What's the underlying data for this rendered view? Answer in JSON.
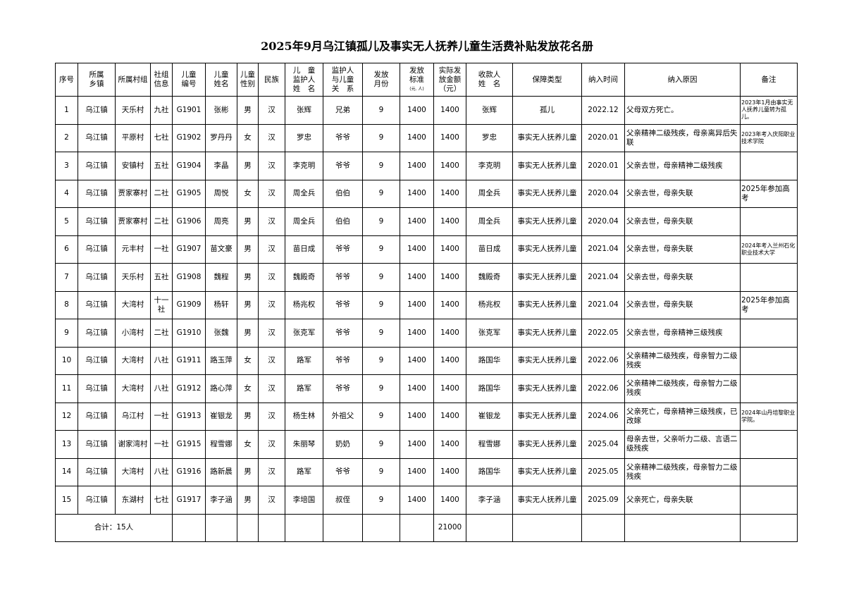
{
  "title": "2025年9月乌江镇孤儿及事实无人抚养儿童生活费补贴发放花名册",
  "headers": [
    "序号",
    "所属\n乡镇",
    "所属村组",
    "社组\n信息",
    "儿童\n编号",
    "儿童\n姓名",
    "儿童\n性别",
    "民族",
    "儿　童\n监护人\n姓　名",
    "监护人\n与儿童\n关　系",
    "发放\n月份",
    "发放\n标准",
    "实际发\n放金额\n（元）",
    "收款人\n姓　名",
    "保障类型",
    "纳入时间",
    "纳入原因",
    "备注"
  ],
  "standard_unit": "(元. 人)",
  "rows": [
    [
      "1",
      "乌江镇",
      "天乐村",
      "九社",
      "G1901",
      "张彬",
      "男",
      "汉",
      "张辉",
      "兄弟",
      "9",
      "1400",
      "1400",
      "张辉",
      "孤儿",
      "2022.12",
      "父母双方死亡。",
      "2023年1月由事实无人抚养儿童转为孤儿。"
    ],
    [
      "2",
      "乌江镇",
      "平原村",
      "七社",
      "G1902",
      "罗丹丹",
      "女",
      "汉",
      "罗忠",
      "爷爷",
      "9",
      "1400",
      "1400",
      "罗忠",
      "事实无人抚养儿童",
      "2020.01",
      "父亲精神二级残疾，母亲离异后失联",
      "2023年考入庆阳职业技术学院"
    ],
    [
      "3",
      "乌江镇",
      "安镇村",
      "五社",
      "G1904",
      "李晶",
      "男",
      "汉",
      "李克明",
      "爷爷",
      "9",
      "1400",
      "1400",
      "李克明",
      "事实无人抚养儿童",
      "2020.01",
      "父亲去世，母亲精神二级残疾",
      ""
    ],
    [
      "4",
      "乌江镇",
      "贾家寨村",
      "二社",
      "G1905",
      "周悦",
      "女",
      "汉",
      "周全兵",
      "伯伯",
      "9",
      "1400",
      "1400",
      "周全兵",
      "事实无人抚养儿童",
      "2020.04",
      "父亲去世，母亲失联",
      "2025年参加高考"
    ],
    [
      "5",
      "乌江镇",
      "贾家寨村",
      "二社",
      "G1906",
      "周亮",
      "男",
      "汉",
      "周全兵",
      "伯伯",
      "9",
      "1400",
      "1400",
      "周全兵",
      "事实无人抚养儿童",
      "2020.04",
      "父亲去世，母亲失联",
      ""
    ],
    [
      "6",
      "乌江镇",
      "元丰村",
      "一社",
      "G1907",
      "苗文豪",
      "男",
      "汉",
      "苗日成",
      "爷爷",
      "9",
      "1400",
      "1400",
      "苗日成",
      "事实无人抚养儿童",
      "2021.04",
      "父亲去世，母亲失联",
      "2024年考入兰州石化职业技术大学"
    ],
    [
      "7",
      "乌江镇",
      "天乐村",
      "五社",
      "G1908",
      "魏程",
      "男",
      "汉",
      "魏殿奇",
      "爷爷",
      "9",
      "1400",
      "1400",
      "魏殿奇",
      "事实无人抚养儿童",
      "2021.04",
      "父亲去世，母亲失联",
      ""
    ],
    [
      "8",
      "乌江镇",
      "大湾村",
      "十一社",
      "G1909",
      "杨轩",
      "男",
      "汉",
      "杨兆权",
      "爷爷",
      "9",
      "1400",
      "1400",
      "杨兆权",
      "事实无人抚养儿童",
      "2021.04",
      "父亲去世，母亲失联",
      "2025年参加高考"
    ],
    [
      "9",
      "乌江镇",
      "小湾村",
      "二社",
      "G1910",
      "张魏",
      "男",
      "汉",
      "张克军",
      "爷爷",
      "9",
      "1400",
      "1400",
      "张克军",
      "事实无人抚养儿童",
      "2022.05",
      "父亲去世，母亲精神三级残疾",
      ""
    ],
    [
      "10",
      "乌江镇",
      "大湾村",
      "八社",
      "G1911",
      "路玉萍",
      "女",
      "汉",
      "路军",
      "爷爷",
      "9",
      "1400",
      "1400",
      "路国华",
      "事实无人抚养儿童",
      "2022.06",
      "父亲精神二级残疾，母亲智力二级残疾",
      ""
    ],
    [
      "11",
      "乌江镇",
      "大湾村",
      "八社",
      "G1912",
      "路心萍",
      "女",
      "汉",
      "路军",
      "爷爷",
      "9",
      "1400",
      "1400",
      "路国华",
      "事实无人抚养儿童",
      "2022.06",
      "父亲精神二级残疾，母亲智力二级残疾",
      ""
    ],
    [
      "12",
      "乌江镇",
      "乌江村",
      "一社",
      "G1913",
      "崔银龙",
      "男",
      "汉",
      "杨生林",
      "外祖父",
      "9",
      "1400",
      "1400",
      "崔银龙",
      "事实无人抚养儿童",
      "2024.06",
      "父亲死亡，母亲精神三级残疾，已改嫁",
      "2024年山丹培黎职业学院。"
    ],
    [
      "13",
      "乌江镇",
      "谢家湾村",
      "一社",
      "G1915",
      "程雪娜",
      "女",
      "汉",
      "朱丽琴",
      "奶奶",
      "9",
      "1400",
      "1400",
      "程雪娜",
      "事实无人抚养儿童",
      "2025.04",
      "母亲去世，父亲听力二级、言语二级残疾",
      ""
    ],
    [
      "14",
      "乌江镇",
      "大湾村",
      "八社",
      "G1916",
      "路新晨",
      "男",
      "汉",
      "路军",
      "爷爷",
      "9",
      "1400",
      "1400",
      "路国华",
      "事实无人抚养儿童",
      "2025.05",
      "父亲精神二级残疾，母亲智力二级残疾",
      ""
    ],
    [
      "15",
      "乌江镇",
      "东湖村",
      "七社",
      "G1917",
      "李子涵",
      "男",
      "汉",
      "李培国",
      "叔侄",
      "9",
      "1400",
      "1400",
      "李子涵",
      "事实无人抚养儿童",
      "2025.09",
      "父亲死亡，母亲失联",
      ""
    ]
  ],
  "total": {
    "label": "合计：15人",
    "amount": "21000"
  }
}
